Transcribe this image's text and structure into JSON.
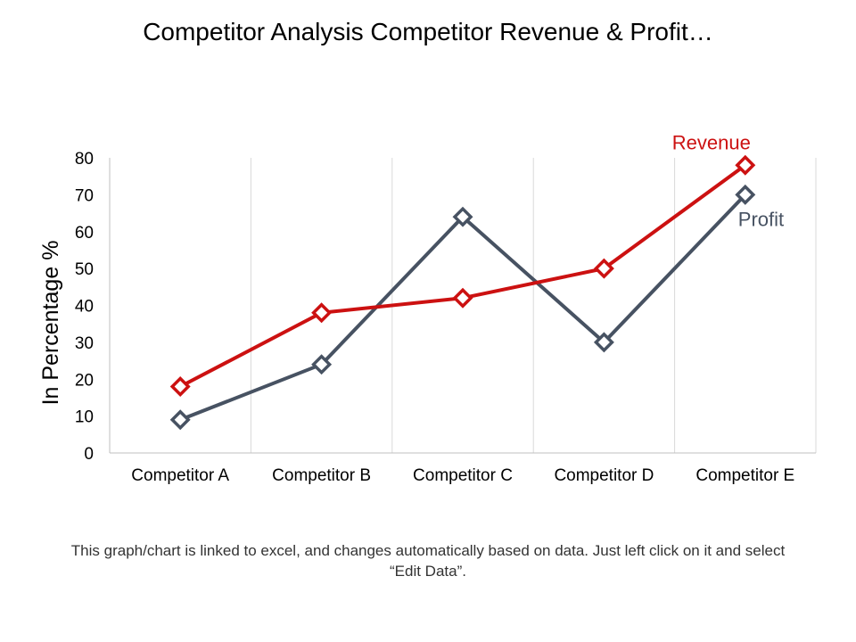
{
  "slide": {
    "title": "Competitor Analysis Competitor Revenue & Profit…",
    "footnote": "This graph/chart is linked to excel, and changes automatically based on data. Just left click on it and select “Edit Data”."
  },
  "colors": {
    "revenue": "#cc1111",
    "profit": "#475262",
    "grid": "#d9d9d9",
    "axis": "#bfbfbf"
  },
  "chart_data": {
    "type": "line",
    "categories": [
      "Competitor A",
      "Competitor B",
      "Competitor C",
      "Competitor D",
      "Competitor E"
    ],
    "ylabel": "In Percentage %",
    "ylim": [
      0,
      80
    ],
    "yticks": [
      0,
      10,
      20,
      30,
      40,
      50,
      60,
      70,
      80
    ],
    "grid": "vertical",
    "marker": "diamond",
    "series": [
      {
        "name": "Revenue",
        "values": [
          18,
          38,
          42,
          50,
          78
        ]
      },
      {
        "name": "Profit",
        "values": [
          9,
          24,
          64,
          30,
          70
        ]
      }
    ]
  }
}
